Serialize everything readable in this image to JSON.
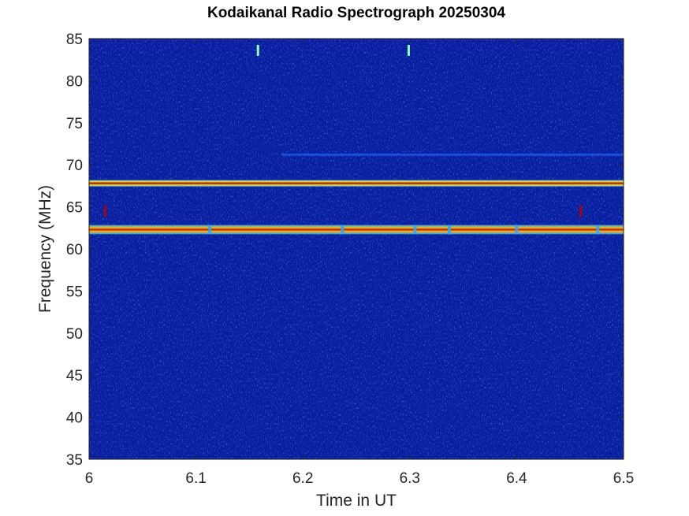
{
  "chart_data": {
    "type": "heatmap",
    "title": "Kodaikanal Radio Spectrograph  20250304",
    "xlabel": "Time in UT",
    "ylabel": "Frequency (MHz)",
    "xlim": [
      6.0,
      6.5
    ],
    "ylim": [
      35,
      85
    ],
    "xticks": [
      6,
      6.1,
      6.2,
      6.3,
      6.4,
      6.5
    ],
    "xtick_labels": [
      "6",
      "6.1",
      "6.2",
      "6.3",
      "6.4",
      "6.5"
    ],
    "yticks": [
      35,
      40,
      45,
      50,
      55,
      60,
      65,
      70,
      75,
      80,
      85
    ],
    "ytick_labels": [
      "35",
      "40",
      "45",
      "50",
      "55",
      "60",
      "65",
      "70",
      "75",
      "80",
      "85"
    ],
    "colormap": "jet",
    "background_color": "#0a1fa0",
    "grid": false,
    "features": [
      {
        "kind": "horizontal-band",
        "frequency_mhz": 67.8,
        "from_ut": 6.0,
        "to_ut": 6.5,
        "intensity": "high"
      },
      {
        "kind": "horizontal-band",
        "frequency_mhz": 62.3,
        "from_ut": 6.0,
        "to_ut": 6.5,
        "intensity": "high"
      },
      {
        "kind": "faint-band",
        "frequency_mhz": 71.2,
        "from_ut": 6.18,
        "to_ut": 6.5,
        "intensity": "low"
      },
      {
        "kind": "spot",
        "time_ut": 6.015,
        "frequency_mhz": 64.5
      },
      {
        "kind": "spot",
        "time_ut": 6.46,
        "frequency_mhz": 64.5
      },
      {
        "kind": "spot",
        "time_ut": 6.158,
        "frequency_mhz": 83.6
      },
      {
        "kind": "spot",
        "time_ut": 6.299,
        "frequency_mhz": 83.6
      }
    ]
  }
}
